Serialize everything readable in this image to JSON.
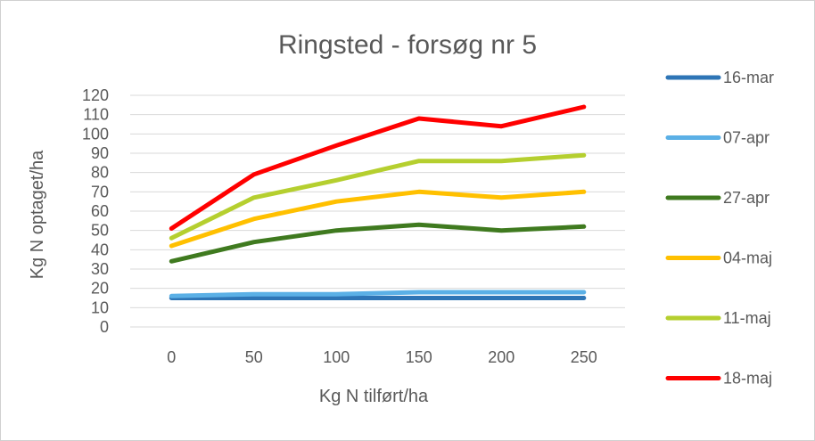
{
  "chart_data": {
    "type": "line",
    "title": "Ringsted - forsøg nr 5",
    "xlabel": "Kg N tilført/ha",
    "ylabel": "Kg N optaget/ha",
    "x": [
      0,
      50,
      100,
      150,
      200,
      250
    ],
    "ylim": [
      0,
      120
    ],
    "yticks": [
      0,
      10,
      20,
      30,
      40,
      50,
      60,
      70,
      80,
      90,
      100,
      110,
      120
    ],
    "grid": true,
    "legend_position": "right",
    "series": [
      {
        "name": "16-mar",
        "color": "#2e75b6",
        "values": [
          15,
          15,
          15,
          15,
          15,
          15
        ]
      },
      {
        "name": "07-apr",
        "color": "#5bb0e6",
        "values": [
          16,
          17,
          17,
          18,
          18,
          18
        ]
      },
      {
        "name": "27-apr",
        "color": "#3f7a1f",
        "values": [
          34,
          44,
          50,
          53,
          50,
          52
        ]
      },
      {
        "name": "04-maj",
        "color": "#ffc000",
        "values": [
          42,
          56,
          65,
          70,
          67,
          70
        ]
      },
      {
        "name": "11-maj",
        "color": "#b5cf2f",
        "values": [
          46,
          67,
          76,
          86,
          86,
          89
        ]
      },
      {
        "name": "18-maj",
        "color": "#ff0000",
        "values": [
          51,
          79,
          94,
          108,
          104,
          114
        ]
      }
    ]
  }
}
